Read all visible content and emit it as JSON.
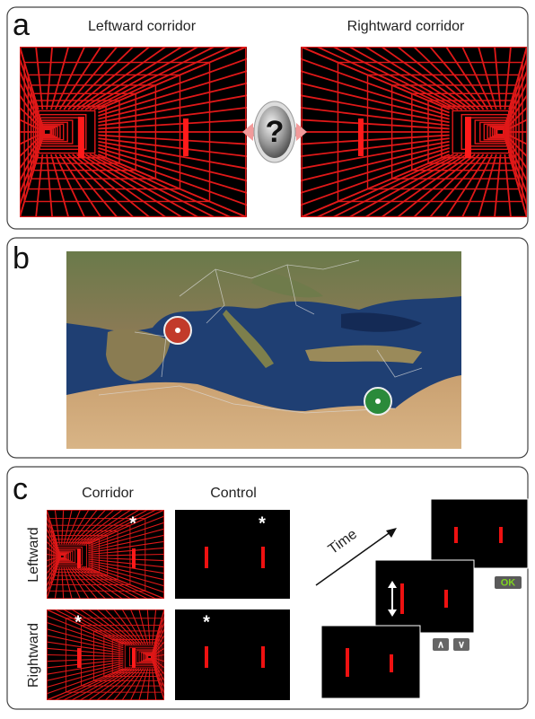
{
  "panels": {
    "a": {
      "label": "a",
      "left_title": "Leftward corridor",
      "right_title": "Rightward corridor",
      "center_icon": "?"
    },
    "b": {
      "label": "b"
    },
    "c": {
      "label": "c",
      "column_headers": [
        "Corridor",
        "Control"
      ],
      "row_headers": [
        "Leftward",
        "Rightward"
      ],
      "stars": [
        "*",
        "*",
        "*",
        "*"
      ],
      "time_label": "Time",
      "ok_button": "OK",
      "up_button": "∧",
      "down_button": "∨"
    }
  }
}
